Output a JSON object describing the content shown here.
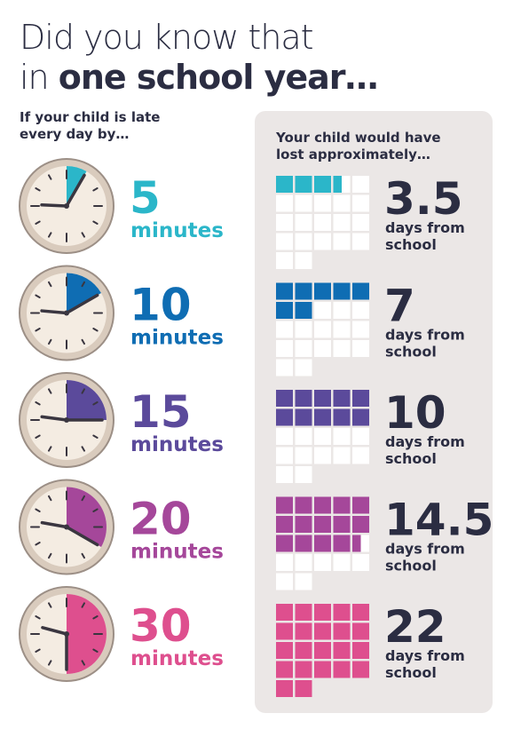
{
  "header": {
    "title_line1": "Did you know that",
    "title_line2_prefix": "in",
    "title_line2_bold": "one school year…"
  },
  "left_heading": [
    "If your child is late",
    "every day by…"
  ],
  "right_heading": [
    "Your child would have",
    "lost approximately…"
  ],
  "labels": {
    "minutes": "minutes",
    "days_line1": "days from",
    "days_line2": "school"
  },
  "rows": [
    {
      "minutes": 5,
      "days": 3.5,
      "color": "#2bb6c9"
    },
    {
      "minutes": 10,
      "days": 7,
      "color": "#0f6db3"
    },
    {
      "minutes": 15,
      "days": 10,
      "color": "#5b4a9b"
    },
    {
      "minutes": 20,
      "days": 14.5,
      "color": "#a5479a"
    },
    {
      "minutes": 30,
      "days": 22,
      "color": "#de4f8e"
    }
  ]
}
